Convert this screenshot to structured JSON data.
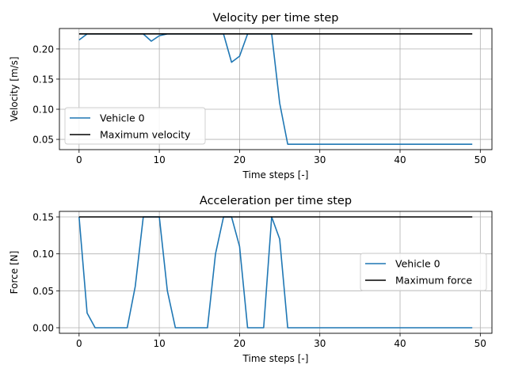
{
  "chart_data": [
    {
      "type": "line",
      "title": "Velocity per time step",
      "xlabel": "Time steps [-]",
      "ylabel": "Velocity [m/s]",
      "xlim": [
        -2.45,
        51.45
      ],
      "ylim": [
        0.033,
        0.234
      ],
      "xticks": [
        0,
        10,
        20,
        30,
        40,
        50
      ],
      "xtick_labels": [
        "0",
        "10",
        "20",
        "30",
        "40",
        "50"
      ],
      "yticks": [
        0.05,
        0.1,
        0.15,
        0.2
      ],
      "ytick_labels": [
        "0.05",
        "0.10",
        "0.15",
        "0.20"
      ],
      "grid": true,
      "legend_position": "lower-left",
      "series": [
        {
          "name": "Vehicle 0",
          "color": "#1f77b4",
          "x": [
            0,
            1,
            2,
            3,
            4,
            5,
            6,
            7,
            8,
            9,
            10,
            11,
            12,
            13,
            14,
            15,
            16,
            17,
            18,
            19,
            20,
            21,
            22,
            23,
            24,
            25,
            26,
            27,
            28,
            29,
            30,
            31,
            32,
            33,
            34,
            35,
            36,
            37,
            38,
            39,
            40,
            41,
            42,
            43,
            44,
            45,
            46,
            47,
            48,
            49
          ],
          "values": [
            0.215,
            0.225,
            0.225,
            0.225,
            0.225,
            0.225,
            0.225,
            0.225,
            0.225,
            0.213,
            0.222,
            0.225,
            0.225,
            0.225,
            0.225,
            0.225,
            0.225,
            0.225,
            0.225,
            0.178,
            0.188,
            0.225,
            0.225,
            0.225,
            0.225,
            0.11,
            0.042,
            0.042,
            0.042,
            0.042,
            0.042,
            0.042,
            0.042,
            0.042,
            0.042,
            0.042,
            0.042,
            0.042,
            0.042,
            0.042,
            0.042,
            0.042,
            0.042,
            0.042,
            0.042,
            0.042,
            0.042,
            0.042,
            0.042,
            0.042
          ]
        },
        {
          "name": "Maximum velocity",
          "color": "#000000",
          "x": [
            0,
            49
          ],
          "values": [
            0.225,
            0.225
          ]
        }
      ]
    },
    {
      "type": "line",
      "title": "Acceleration per time step",
      "xlabel": "Time steps [-]",
      "ylabel": "Force [N]",
      "xlim": [
        -2.45,
        51.45
      ],
      "ylim": [
        -0.0075,
        0.1575
      ],
      "xticks": [
        0,
        10,
        20,
        30,
        40,
        50
      ],
      "xtick_labels": [
        "0",
        "10",
        "20",
        "30",
        "40",
        "50"
      ],
      "yticks": [
        0.0,
        0.05,
        0.1,
        0.15
      ],
      "ytick_labels": [
        "0.00",
        "0.05",
        "0.10",
        "0.15"
      ],
      "grid": true,
      "legend_position": "center-right",
      "series": [
        {
          "name": "Vehicle 0",
          "color": "#1f77b4",
          "x": [
            0,
            1,
            2,
            3,
            4,
            5,
            6,
            7,
            8,
            9,
            10,
            11,
            12,
            13,
            14,
            15,
            16,
            17,
            18,
            19,
            20,
            21,
            22,
            23,
            24,
            25,
            26,
            27,
            28,
            29,
            30,
            31,
            32,
            33,
            34,
            35,
            36,
            37,
            38,
            39,
            40,
            41,
            42,
            43,
            44,
            45,
            46,
            47,
            48,
            49
          ],
          "values": [
            0.15,
            0.02,
            0.0,
            0.0,
            0.0,
            0.0,
            0.0,
            0.056,
            0.15,
            0.15,
            0.15,
            0.05,
            0.0,
            0.0,
            0.0,
            0.0,
            0.0,
            0.1,
            0.15,
            0.15,
            0.11,
            0.0,
            0.0,
            0.0,
            0.15,
            0.12,
            0.0,
            0.0,
            0.0,
            0.0,
            0.0,
            0.0,
            0.0,
            0.0,
            0.0,
            0.0,
            0.0,
            0.0,
            0.0,
            0.0,
            0.0,
            0.0,
            0.0,
            0.0,
            0.0,
            0.0,
            0.0,
            0.0,
            0.0,
            0.0
          ]
        },
        {
          "name": "Maximum force",
          "color": "#000000",
          "x": [
            0,
            49
          ],
          "values": [
            0.15,
            0.15
          ]
        }
      ]
    }
  ]
}
